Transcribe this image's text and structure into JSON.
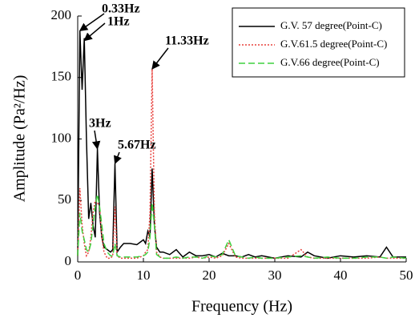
{
  "chart_data": {
    "type": "line",
    "xlabel": "Frequency (Hz)",
    "ylabel": "Amplitude (Pa²/Hz)",
    "x": [
      0,
      0.33,
      0.67,
      1,
      1.33,
      1.67,
      2,
      2.33,
      2.67,
      3,
      3.33,
      3.67,
      4,
      4.5,
      5,
      5.33,
      5.67,
      6,
      6.5,
      7,
      8,
      9,
      10,
      10.33,
      10.67,
      11,
      11.33,
      11.67,
      12,
      12.5,
      13,
      14,
      15,
      16,
      17,
      18,
      19,
      20,
      21,
      22,
      23,
      24,
      25,
      26,
      27,
      28,
      30,
      32,
      34,
      35,
      36,
      38,
      40,
      42,
      44,
      46,
      47,
      48,
      50
    ],
    "series": [
      {
        "name": "G.V. 57 degree(Point-C)",
        "color": "#000000",
        "dash": "solid",
        "values": [
          5,
          188,
          140,
          182,
          100,
          35,
          48,
          30,
          20,
          92,
          40,
          20,
          12,
          10,
          8,
          10,
          80,
          8,
          12,
          15,
          15,
          14,
          18,
          15,
          25,
          20,
          76,
          30,
          12,
          8,
          8,
          6,
          10,
          4,
          8,
          5,
          5,
          6,
          4,
          7,
          5,
          5,
          4,
          6,
          4,
          5,
          3,
          5,
          4,
          8,
          5,
          3,
          5,
          4,
          5,
          4,
          12,
          4,
          4
        ]
      },
      {
        "name": "G.V.61.5 degree(Point-C)",
        "color": "#e8413c",
        "dash": "dotted",
        "values": [
          5,
          60,
          30,
          15,
          5,
          8,
          20,
          40,
          50,
          48,
          45,
          20,
          8,
          3,
          3,
          5,
          45,
          5,
          3,
          3,
          3,
          3,
          5,
          8,
          10,
          40,
          157,
          40,
          8,
          4,
          3,
          3,
          3,
          3,
          3,
          4,
          3,
          4,
          3,
          5,
          15,
          4,
          3,
          3,
          3,
          3,
          3,
          3,
          10,
          4,
          3,
          3,
          3,
          3,
          3,
          4,
          3,
          3,
          3
        ]
      },
      {
        "name": "G.V.66 degree(Point-C)",
        "color": "#3fd13f",
        "dash": "dashed",
        "values": [
          5,
          40,
          25,
          18,
          10,
          8,
          15,
          30,
          45,
          55,
          45,
          30,
          15,
          8,
          5,
          5,
          15,
          5,
          4,
          4,
          4,
          4,
          5,
          6,
          8,
          20,
          48,
          30,
          6,
          4,
          3,
          3,
          4,
          3,
          4,
          4,
          3,
          5,
          4,
          6,
          18,
          5,
          4,
          3,
          4,
          3,
          3,
          4,
          5,
          4,
          3,
          4,
          3,
          3,
          4,
          4,
          3,
          4,
          3
        ]
      }
    ],
    "xlim": [
      0,
      50
    ],
    "xticks": [
      0,
      10,
      20,
      30,
      40,
      50
    ],
    "ylim": [
      0,
      200
    ],
    "yticks": [
      0,
      50,
      100,
      150,
      200
    ],
    "legend": "upper right",
    "annotations": [
      {
        "text": "0.33Hz",
        "x": 0.33,
        "y": 188
      },
      {
        "text": "1Hz",
        "x": 1,
        "y": 180
      },
      {
        "text": "3Hz",
        "x": 3,
        "y": 92
      },
      {
        "text": "5.67Hz",
        "x": 5.67,
        "y": 80
      },
      {
        "text": "11.33Hz",
        "x": 11.33,
        "y": 157
      }
    ]
  }
}
